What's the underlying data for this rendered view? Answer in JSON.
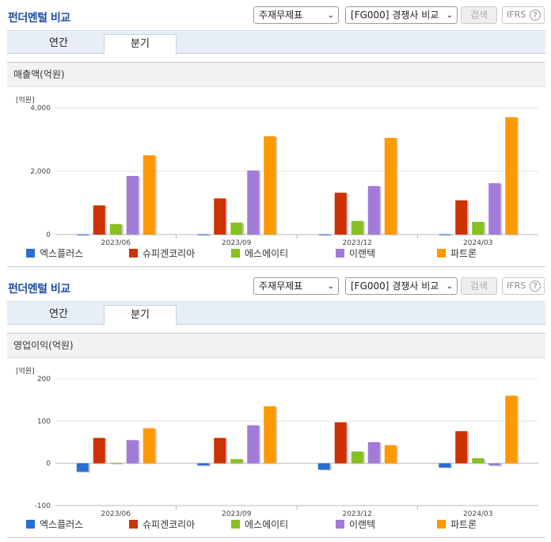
{
  "panels": [
    {
      "title": "펀더멘털 비교",
      "select_statement": "주재무제표",
      "select_compare": "[FG000] 경쟁사 비교",
      "search_label": "검색",
      "ifrs_label": "IFRS",
      "help_icon": "?",
      "tabs": [
        {
          "label": "연간"
        },
        {
          "label": "분기"
        }
      ],
      "active_tab": 1,
      "section_title": "매출액(억원)",
      "unit_label": "[억원]",
      "chart_data": {
        "type": "bar",
        "title": "매출액(억원)",
        "ylabel": "[억원]",
        "categories": [
          "2023/06",
          "2023/09",
          "2023/12",
          "2024/03"
        ],
        "ylim": [
          0,
          4000
        ],
        "yticks": [
          0,
          2000,
          4000
        ],
        "ytick_labels": [
          "0",
          "2,000",
          "4,000"
        ],
        "series": [
          {
            "name": "엑스플러스",
            "color": "#2a6ed2",
            "values": [
              10,
              12,
              12,
              12
            ]
          },
          {
            "name": "슈피겐코리아",
            "color": "#cc3300",
            "values": [
              920,
              1140,
              1320,
              1080
            ]
          },
          {
            "name": "에스에이티",
            "color": "#88c020",
            "values": [
              330,
              380,
              430,
              400
            ]
          },
          {
            "name": "이랜텍",
            "color": "#a27ad8",
            "values": [
              1850,
              2020,
              1530,
              1620
            ]
          },
          {
            "name": "파트론",
            "color": "#ff9900",
            "values": [
              2500,
              3100,
              3050,
              3700
            ]
          }
        ]
      }
    },
    {
      "title": "펀더멘털 비교",
      "select_statement": "주재무제표",
      "select_compare": "[FG000] 경쟁사 비교",
      "search_label": "검색",
      "ifrs_label": "IFRS",
      "help_icon": "?",
      "tabs": [
        {
          "label": "연간"
        },
        {
          "label": "분기"
        }
      ],
      "active_tab": 1,
      "section_title": "영업이익(억원)",
      "unit_label": "[억원]",
      "chart_data": {
        "type": "bar",
        "title": "영업이익(억원)",
        "ylabel": "[억원]",
        "categories": [
          "2023/06",
          "2023/09",
          "2023/12",
          "2024/03"
        ],
        "ylim": [
          -100,
          200
        ],
        "yticks": [
          -100,
          0,
          100,
          200
        ],
        "ytick_labels": [
          "-100",
          "0",
          "100",
          "200"
        ],
        "series": [
          {
            "name": "엑스플러스",
            "color": "#2a6ed2",
            "values": [
              -20,
              -5,
              -15,
              -10
            ]
          },
          {
            "name": "슈피겐코리아",
            "color": "#cc3300",
            "values": [
              60,
              60,
              97,
              76
            ]
          },
          {
            "name": "에스에이티",
            "color": "#88c020",
            "values": [
              1,
              10,
              28,
              12
            ]
          },
          {
            "name": "이랜텍",
            "color": "#a27ad8",
            "values": [
              55,
              90,
              50,
              -5
            ]
          },
          {
            "name": "파트론",
            "color": "#ff9900",
            "values": [
              83,
              135,
              43,
              160
            ]
          }
        ]
      }
    }
  ]
}
